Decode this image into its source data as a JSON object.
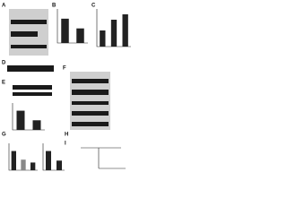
{
  "panels": [
    {
      "label": "A"
    },
    {
      "label": "B"
    },
    {
      "label": "C"
    },
    {
      "label": "D"
    },
    {
      "label": "E"
    },
    {
      "label": "F"
    },
    {
      "label": "G"
    },
    {
      "label": "H"
    },
    {
      "label": "I"
    }
  ],
  "charts": [
    {
      "panel": "B",
      "values": [
        1.0,
        0.6
      ],
      "ylim": [
        0,
        1.4
      ],
      "colors": [
        "#222222",
        "#222222"
      ]
    },
    {
      "panel": "C",
      "values": [
        0.6,
        1.0,
        1.2
      ],
      "ylim": [
        0,
        1.4
      ],
      "colors": [
        "#222222",
        "#222222",
        "#222222"
      ]
    },
    {
      "panel": "E",
      "values": [
        1.0,
        0.5
      ],
      "ylim": [
        0,
        1.4
      ],
      "colors": [
        "#222222",
        "#222222"
      ]
    },
    {
      "panel": "G",
      "values": [
        1.0,
        0.55,
        0.4
      ],
      "ylim": [
        0,
        1.4
      ],
      "colors": [
        "#222222",
        "#888888",
        "#222222"
      ]
    },
    {
      "panel": "G",
      "values": [
        1.0,
        0.5
      ],
      "ylim": [
        0,
        1.4
      ],
      "colors": [
        "#222222",
        "#222222"
      ]
    }
  ]
}
